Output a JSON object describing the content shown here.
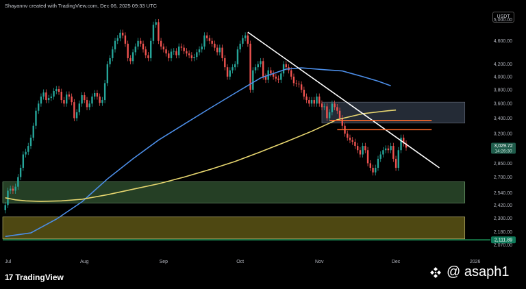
{
  "header": {
    "credit": "Shayannv created with TradingView.com, Dec 06, 2025 09:33 UTC",
    "currency": "USDT"
  },
  "branding": {
    "logo_text": "17",
    "name": "TradingView",
    "watermark": "@ asaph1"
  },
  "colors": {
    "background": "#000000",
    "bull": "#26a69a",
    "bear": "#ef5350",
    "ma_fast": "#4c8ee8",
    "ma_slow": "#e8d770",
    "trendline": "#ffffff",
    "resistance": "#ff6a2b",
    "zone_upper": "#2a3240",
    "zone_green": "#2b4a2b",
    "zone_olive": "#5c5515",
    "marker_green": "#26d07c"
  },
  "chart_data": {
    "type": "candlestick",
    "symbol_quote": "USDT",
    "y_scale": "log",
    "ylim": [
      2030,
      5200
    ],
    "y_ticks": [
      5000,
      4600,
      4200,
      4000,
      3800,
      3600,
      3400,
      3200,
      3000,
      2850,
      2700,
      2540,
      2420,
      2300,
      2180,
      2070
    ],
    "y_tick_labels": [
      "5,000.00",
      "4,600.00",
      "4,200.00",
      "4,000.00",
      "3,800.00",
      "3,600.00",
      "3,400.00",
      "3,200.00",
      "3,000.00",
      "2,850.00",
      "2,700.00",
      "2,540.00",
      "2,420.00",
      "2,300.00",
      "2,180.00",
      "2,070.00"
    ],
    "x_ticks": [
      {
        "label": "Jul",
        "index": 0
      },
      {
        "label": "Aug",
        "index": 31
      },
      {
        "label": "Sep",
        "index": 62
      },
      {
        "label": "Oct",
        "index": 92
      },
      {
        "label": "Nov",
        "index": 123
      },
      {
        "label": "Dec",
        "index": 153
      },
      {
        "label": "2026",
        "index": 184
      }
    ],
    "x_range": [
      -1,
      190
    ],
    "closes": [
      2420,
      2560,
      2580,
      2560,
      2600,
      2700,
      2800,
      2950,
      2980,
      3050,
      3150,
      3300,
      3500,
      3600,
      3700,
      3760,
      3650,
      3680,
      3700,
      3780,
      3810,
      3770,
      3650,
      3600,
      3730,
      3700,
      3620,
      3400,
      3480,
      3600,
      3720,
      3650,
      3550,
      3600,
      3700,
      3750,
      3700,
      3610,
      3650,
      3900,
      4200,
      4300,
      4450,
      4600,
      4650,
      4750,
      4700,
      4550,
      4300,
      4250,
      4400,
      4500,
      4600,
      4550,
      4450,
      4350,
      4300,
      4600,
      4900,
      4950,
      4600,
      4500,
      4450,
      4380,
      4300,
      4410,
      4420,
      4350,
      4500,
      4480,
      4420,
      4380,
      4350,
      4300,
      4320,
      4400,
      4450,
      4500,
      4700,
      4650,
      4600,
      4550,
      4480,
      4400,
      4480,
      4300,
      4150,
      4000,
      4100,
      4150,
      4200,
      4450,
      4550,
      4650,
      4700,
      4550,
      3800,
      4100,
      4150,
      4200,
      4250,
      4000,
      3950,
      4100,
      4050,
      4000,
      3970,
      3950,
      4050,
      4200,
      4150,
      4100,
      4000,
      3900,
      3890,
      3880,
      3800,
      3700,
      3650,
      3600,
      3650,
      3600,
      3700,
      3600,
      3550,
      3560,
      3400,
      3480,
      3600,
      3550,
      3500,
      3400,
      3300,
      3200,
      3150,
      3120,
      3100,
      3050,
      3000,
      2950,
      3050,
      3000,
      2850,
      2800,
      2750,
      2800,
      2900,
      2950,
      3000,
      3020,
      3000,
      3050,
      2900,
      2800,
      3000,
      3150,
      3080,
      3030
    ],
    "indicators": [
      {
        "name": "MA fast",
        "color": "#4c8ee8",
        "points": [
          [
            0,
            2140
          ],
          [
            10,
            2170
          ],
          [
            20,
            2290
          ],
          [
            30,
            2450
          ],
          [
            40,
            2680
          ],
          [
            50,
            2900
          ],
          [
            60,
            3120
          ],
          [
            70,
            3320
          ],
          [
            80,
            3530
          ],
          [
            90,
            3750
          ],
          [
            100,
            3980
          ],
          [
            110,
            4120
          ],
          [
            116,
            4140
          ],
          [
            125,
            4110
          ],
          [
            132,
            4090
          ],
          [
            140,
            4000
          ],
          [
            146,
            3930
          ],
          [
            151,
            3860
          ]
        ]
      },
      {
        "name": "MA slow",
        "color": "#e8d770",
        "points": [
          [
            0,
            2490
          ],
          [
            4,
            2470
          ],
          [
            8,
            2460
          ],
          [
            14,
            2455
          ],
          [
            22,
            2460
          ],
          [
            30,
            2475
          ],
          [
            40,
            2520
          ],
          [
            50,
            2575
          ],
          [
            60,
            2630
          ],
          [
            70,
            2700
          ],
          [
            80,
            2780
          ],
          [
            90,
            2870
          ],
          [
            100,
            2980
          ],
          [
            110,
            3100
          ],
          [
            120,
            3230
          ],
          [
            130,
            3380
          ],
          [
            140,
            3460
          ],
          [
            150,
            3500
          ],
          [
            153,
            3510
          ]
        ]
      }
    ],
    "trendline": [
      [
        95,
        4760
      ],
      [
        170,
        2800
      ]
    ],
    "zones": [
      {
        "name": "upper",
        "y_low": 3335,
        "y_high": 3620,
        "x_from": 124,
        "x_to": 180
      },
      {
        "name": "green",
        "y_low": 2440,
        "y_high": 2650,
        "x_from": -1,
        "x_to": 180
      },
      {
        "name": "olive",
        "y_low": 2120,
        "y_high": 2310,
        "x_from": -1,
        "x_to": 180
      }
    ],
    "resistance_levels": [
      {
        "price": 3370,
        "x_from": 127,
        "x_to": 167
      },
      {
        "price": 3250,
        "x_from": 130,
        "x_to": 167
      }
    ],
    "price_labels": [
      {
        "name": "last",
        "price_text": "3,029.72",
        "timer_text": "14:26:30",
        "price": 3030
      },
      {
        "name": "level",
        "price_text": "2,111.89",
        "price": 2112
      }
    ]
  }
}
